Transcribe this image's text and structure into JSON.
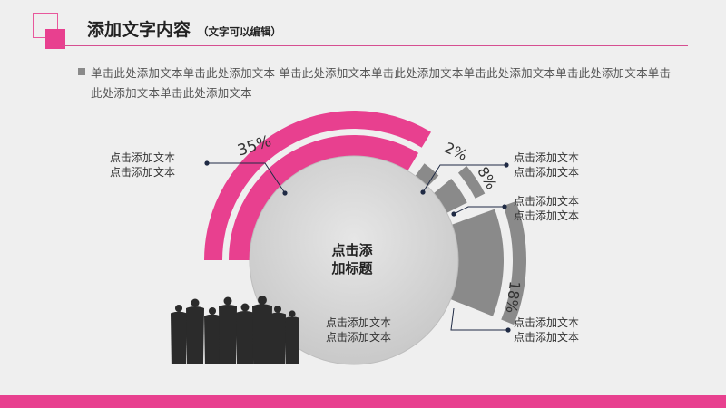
{
  "header": {
    "title": "添加文字内容",
    "subtitle": "（文字可以编辑）"
  },
  "description": "单击此处添加文本单击此处添加文本 单击此处添加文本单击此处添加文本单击此处添加文本单击此处添加文本单击此处添加文本单击此处添加文本",
  "colors": {
    "accent": "#e8408f",
    "gray_segment": "#8a8a8a",
    "center_circle": "#d6d6d6"
  },
  "chart_data": {
    "type": "pie",
    "center_label": [
      "点击添",
      "加标题"
    ],
    "segments": [
      {
        "label": "35%",
        "value": 35,
        "color": "#e8408f",
        "callout": [
          "点击添加文本",
          "点击添加文本"
        ]
      },
      {
        "label": "2%",
        "value": 2,
        "color": "#8a8a8a",
        "callout": [
          "点击添加文本",
          "点击添加文本"
        ]
      },
      {
        "label": "8%",
        "value": 8,
        "color": "#8a8a8a",
        "callout": [
          "点击添加文本",
          "点击添加文本"
        ]
      },
      {
        "label": "18%",
        "value": 18,
        "color": "#8a8a8a",
        "callout": [
          "点击添加文本",
          "点击添加文本"
        ]
      }
    ],
    "bottom_callout": [
      "点击添加文本",
      "点击添加文本"
    ]
  }
}
